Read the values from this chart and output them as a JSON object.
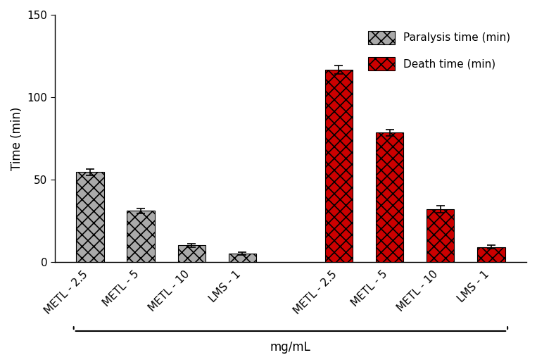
{
  "categories": [
    "METL - 2.5",
    "METL - 5",
    "METL - 10",
    "LMS - 1"
  ],
  "paralysis_values": [
    54.5,
    31.0,
    10.0,
    5.0
  ],
  "paralysis_errors": [
    2.0,
    1.5,
    1.0,
    0.8
  ],
  "death_values": [
    116.5,
    78.5,
    32.0,
    9.0
  ],
  "death_errors": [
    2.5,
    2.0,
    2.0,
    1.0
  ],
  "ylabel": "Time (min)",
  "xlabel": "mg/mL",
  "ylim": [
    0,
    150
  ],
  "yticks": [
    0,
    50,
    100,
    150
  ],
  "legend_labels": [
    "Paralysis time (min)",
    "Death time (min)"
  ],
  "paralysis_face_color": "#aaaaaa",
  "paralysis_hatch_color": "#000000",
  "death_face_color": "#cc0000",
  "death_hatch_color": "#000000",
  "bar_width": 0.55,
  "background_color": "#ffffff",
  "error_capsize": 4,
  "font_size": 11,
  "axis_label_size": 12
}
